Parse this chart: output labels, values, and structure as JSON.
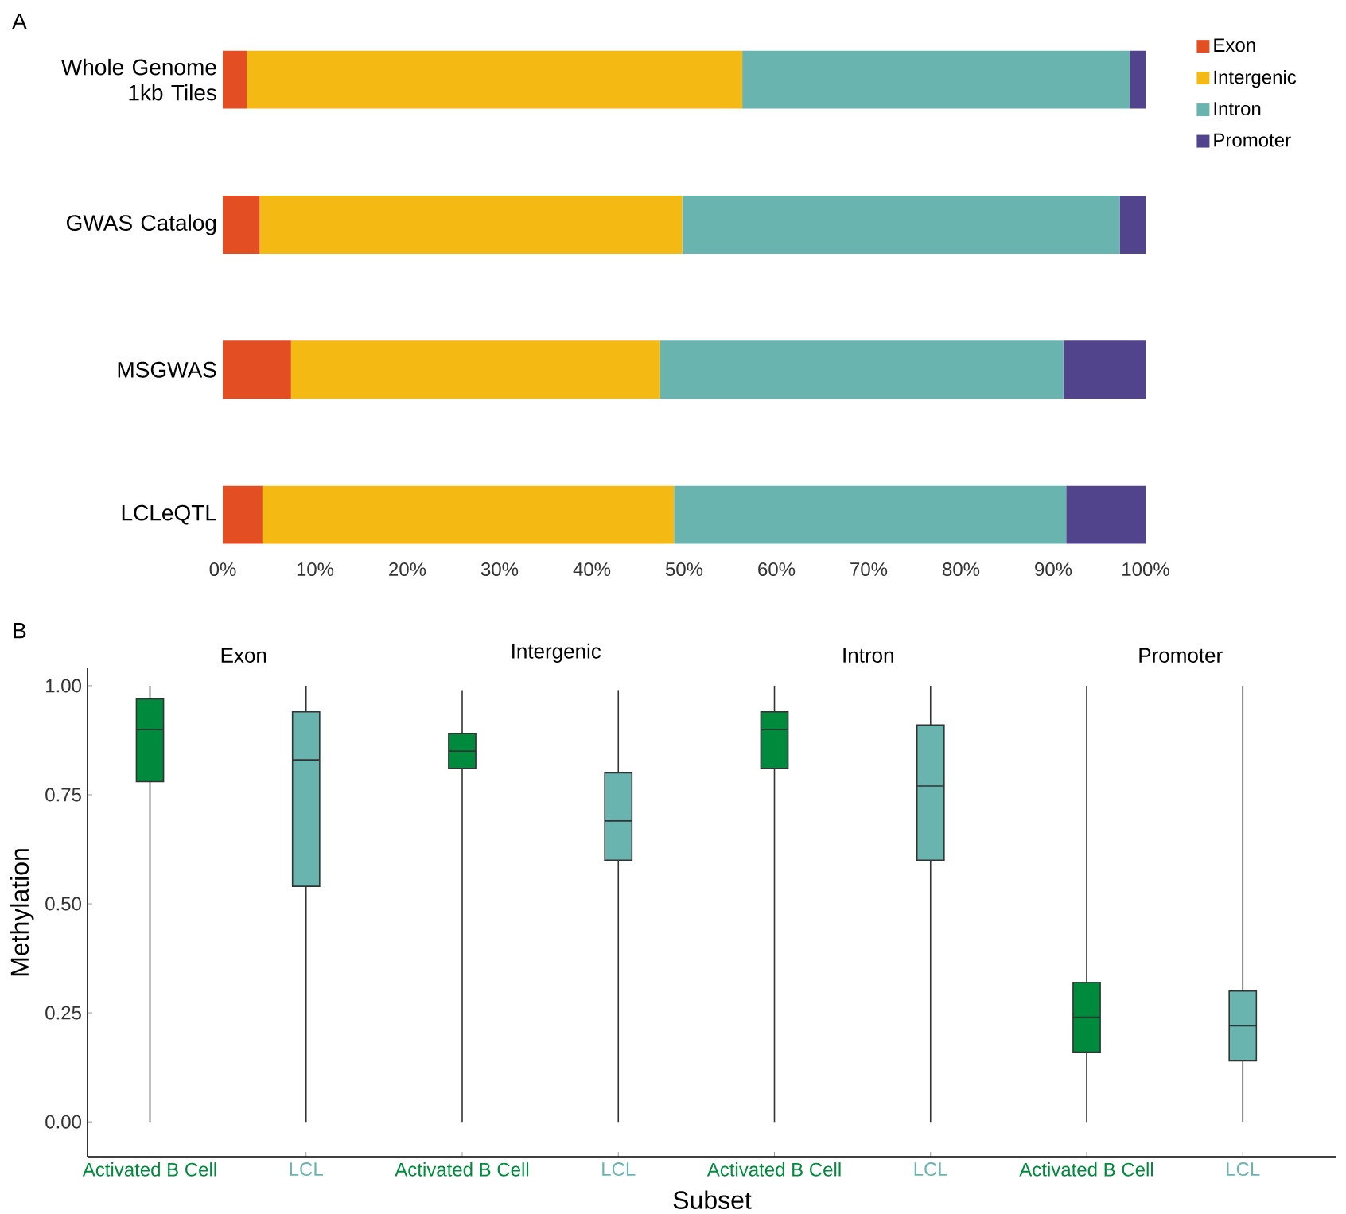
{
  "chart_data": [
    {
      "type": "bar",
      "orientation": "horizontal",
      "stacked": true,
      "annotations": [
        "A"
      ],
      "categories": [
        "Whole Genome 1kb Tiles",
        "GWAS Catalog",
        "MSGWAS",
        "LCLeQTL"
      ],
      "series": [
        {
          "name": "Exon",
          "color": "#e34e22",
          "values": [
            2.6,
            4.0,
            7.4,
            4.3
          ]
        },
        {
          "name": "Intergenic",
          "color": "#f5b914",
          "values": [
            53.7,
            45.8,
            40.0,
            44.6
          ]
        },
        {
          "name": "Intron",
          "color": "#6ab4b0",
          "values": [
            42.0,
            47.4,
            43.7,
            42.5
          ]
        },
        {
          "name": "Promoter",
          "color": "#52448c",
          "values": [
            1.7,
            2.8,
            8.9,
            8.6
          ]
        }
      ],
      "xlim": [
        0,
        100
      ],
      "xticks": [
        {
          "value": 0,
          "label": "0%"
        },
        {
          "value": 10,
          "label": "10%"
        },
        {
          "value": 20,
          "label": "20%"
        },
        {
          "value": 30,
          "label": "30%"
        },
        {
          "value": 40,
          "label": "40%"
        },
        {
          "value": 50,
          "label": "50%"
        },
        {
          "value": 60,
          "label": "60%"
        },
        {
          "value": 70,
          "label": "70%"
        },
        {
          "value": 80,
          "label": "80%"
        },
        {
          "value": 90,
          "label": "90%"
        },
        {
          "value": 100,
          "label": "100%"
        }
      ],
      "legend": "right"
    },
    {
      "type": "box",
      "xlabel": "Subset",
      "ylabel": "Methylation",
      "annotations": [
        "B"
      ],
      "categories": [
        "Exon",
        "Intergenic",
        "Intron",
        "Promoter"
      ],
      "series": [
        {
          "name": "Activated B Cell",
          "color": "#008a3e",
          "boxes": [
            {
              "low": 0,
              "q1": 0.78,
              "median": 0.9,
              "q3": 0.97,
              "high": 1.0
            },
            {
              "low": 0,
              "q1": 0.81,
              "median": 0.85,
              "q3": 0.89,
              "high": 0.99
            },
            {
              "low": 0,
              "q1": 0.81,
              "median": 0.9,
              "q3": 0.94,
              "high": 1.0
            },
            {
              "low": 0,
              "q1": 0.16,
              "median": 0.24,
              "q3": 0.32,
              "high": 1.0
            }
          ]
        },
        {
          "name": "LCL",
          "color": "#6ab4b0",
          "boxes": [
            {
              "low": 0,
              "q1": 0.54,
              "median": 0.83,
              "q3": 0.94,
              "high": 1.0
            },
            {
              "low": 0,
              "q1": 0.6,
              "median": 0.69,
              "q3": 0.8,
              "high": 0.99
            },
            {
              "low": 0,
              "q1": 0.6,
              "median": 0.77,
              "q3": 0.91,
              "high": 1.0
            },
            {
              "low": 0,
              "q1": 0.14,
              "median": 0.22,
              "q3": 0.3,
              "high": 1.0
            }
          ]
        }
      ],
      "ylim": [
        -0.08,
        1.04
      ],
      "yticks": [
        {
          "value": 0,
          "label": "0.00"
        },
        {
          "value": 0.25,
          "label": "0.25"
        },
        {
          "value": 0.5,
          "label": "0.50"
        },
        {
          "value": 0.75,
          "label": "0.75"
        },
        {
          "value": 1,
          "label": "1.00"
        }
      ]
    }
  ]
}
